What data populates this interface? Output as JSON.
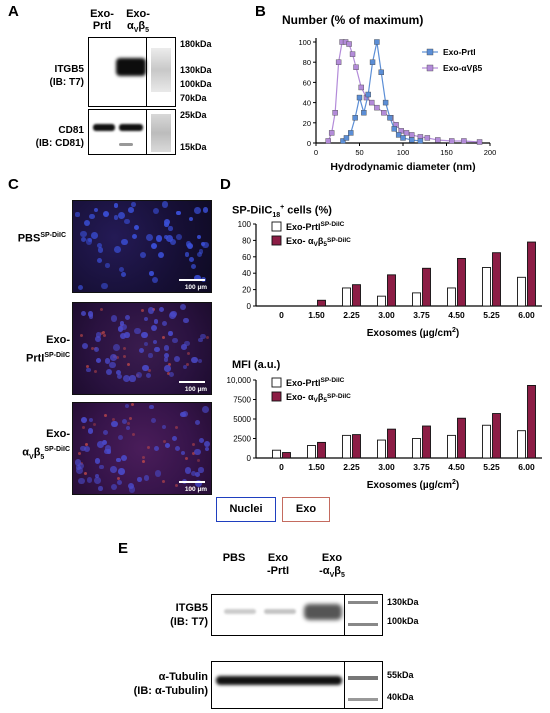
{
  "panel_a": {
    "label": "A",
    "lanes": [
      "Exo-Prtl",
      "Exo-αVβ5"
    ],
    "blots": [
      {
        "name": "ITGB5 (IB: T7)",
        "markers": [
          "180kDa",
          "130kDa",
          "100kDa",
          "70kDa"
        ]
      },
      {
        "name": "CD81 (IB: CD81)",
        "markers": [
          "25kDa",
          "15kDa"
        ]
      }
    ]
  },
  "panel_b": {
    "label": "B",
    "chart_data": {
      "type": "line",
      "title": "Number (% of maximum)",
      "xlabel": "Hydrodynamic diameter (nm)",
      "xlim": [
        0,
        200
      ],
      "ylim": [
        0,
        100
      ],
      "xticks": [
        0,
        50,
        100,
        150,
        200
      ],
      "yticks": [
        0,
        20,
        40,
        60,
        80,
        100
      ],
      "legend_position": "top-right",
      "series": [
        {
          "name": "Exo-Prtl",
          "color": "#5b8ed6",
          "x": [
            31,
            35,
            40,
            45,
            50,
            55,
            60,
            65,
            70,
            75,
            80,
            85,
            90,
            95,
            100,
            110,
            120
          ],
          "y": [
            2,
            5,
            10,
            25,
            45,
            30,
            48,
            80,
            100,
            70,
            40,
            25,
            14,
            8,
            5,
            3,
            2
          ]
        },
        {
          "name": "Exo-αVβ5",
          "color": "#b38bd9",
          "x": [
            14,
            18,
            22,
            26,
            30,
            34,
            38,
            42,
            46,
            52,
            58,
            64,
            70,
            78,
            86,
            92,
            98,
            104,
            110,
            120,
            128,
            140,
            156,
            170,
            188
          ],
          "y": [
            2,
            10,
            30,
            80,
            100,
            100,
            98,
            88,
            75,
            55,
            45,
            40,
            35,
            30,
            25,
            18,
            12,
            10,
            8,
            6,
            5,
            3,
            2,
            2,
            1
          ]
        }
      ]
    }
  },
  "panel_c": {
    "label": "C",
    "rows": [
      {
        "name_main": "PBS",
        "name_sup": "SP-DiIC",
        "scale": "100 µm"
      },
      {
        "name_main": "Exo-PrtI",
        "name_sup": "SP-DiIC",
        "scale": "100 µm"
      },
      {
        "name_main": "Exo-αVβ5",
        "name_sup": "SP-DiIC",
        "scale": "100 µm"
      }
    ],
    "legend": {
      "nuclei": "Nuclei",
      "exo": "Exo",
      "nuclei_color": "#1f3fbf",
      "exo_color": "#c46b5f"
    }
  },
  "panel_d": {
    "label": "D",
    "charts": [
      {
        "type": "bar",
        "title": "SP-DiIC18+ cells (%)",
        "xlabel": "Exosomes (µg/cm2)",
        "ylim": [
          0,
          100
        ],
        "yticks": [
          "0",
          "20",
          "40",
          "60",
          "80",
          "100"
        ],
        "categories": [
          "0",
          "1.50",
          "2.25",
          "3.00",
          "3.75",
          "4.50",
          "5.25",
          "6.00"
        ],
        "series": [
          {
            "name": "Exo-PrtlSP-DiIC",
            "fill": "#ffffff",
            "values": [
              0,
              0,
              22,
              12,
              16,
              22,
              47,
              35
            ]
          },
          {
            "name": "Exo- αVβ5SP-DiIC",
            "fill": "#8c1d45",
            "values": [
              0,
              7,
              26,
              38,
              46,
              58,
              65,
              78
            ]
          }
        ]
      },
      {
        "type": "bar",
        "title": "MFI (a.u.)",
        "xlabel": "Exosomes (µg/cm2)",
        "ylim": [
          0,
          10000
        ],
        "yticks": [
          "0",
          "2500",
          "5000",
          "7500",
          "10,000"
        ],
        "categories": [
          "0",
          "1.50",
          "2.25",
          "3.00",
          "3.75",
          "4.50",
          "5.25",
          "6.00"
        ],
        "series": [
          {
            "name": "Exo-PrtlSP-DiIC",
            "fill": "#ffffff",
            "values": [
              1000,
              1600,
              2900,
              2300,
              2500,
              2900,
              4200,
              3500
            ]
          },
          {
            "name": "Exo- αVβ5SP-DiIC",
            "fill": "#8c1d45",
            "values": [
              700,
              2000,
              3000,
              3700,
              4100,
              5100,
              5700,
              9300
            ]
          }
        ]
      }
    ]
  },
  "panel_e": {
    "label": "E",
    "lanes": [
      "PBS",
      "Exo -PrtI",
      "Exo -αVβ5"
    ],
    "blots": [
      {
        "name": "ITGB5 (IB: T7)",
        "markers": [
          "130kDa",
          "100kDa"
        ]
      },
      {
        "name": "α-Tubulin (IB: α-Tubulin)",
        "markers": [
          "55kDa",
          "40kDa"
        ]
      }
    ]
  }
}
